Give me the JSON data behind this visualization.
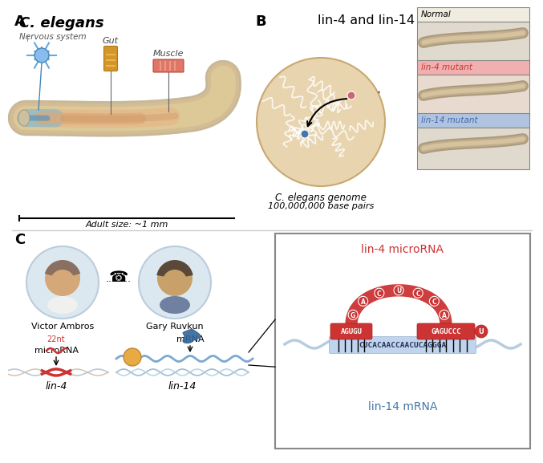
{
  "bg_color": "#ffffff",
  "panel_A_label": "A",
  "panel_B_label": "B",
  "panel_C_label": "C",
  "title_B": "lin-4 and lin-14 mutants",
  "elegans_title": "C. elegans",
  "nervous_system": "Nervous system",
  "gut_label": "Gut",
  "muscle_label": "Muscle",
  "adult_size": "Adult size: ~1 mm",
  "genome_label": "C. elegans genome",
  "base_pairs": "100,000,000 base pairs",
  "lin4_label": "lin-4",
  "lin14_label": "lin-14",
  "normal_label": "Normal",
  "lin4_mutant_label": "lin-4 mutant",
  "lin14_mutant_label": "lin-14 mutant",
  "ambros_name": "Victor Ambros",
  "ruvkun_name": "Gary Ruvkun",
  "nt_label": "22nt",
  "microrna_label": "microRNA",
  "mrna_label": "mRNA",
  "lin4_gene": "lin-4",
  "lin14_gene": "lin-14",
  "microrna_title": "lin-4 microRNA",
  "mrna_title": "lin-14 mRNA",
  "microrna_seq_left": "AGUGU",
  "microrna_seq_loop": "GACUCCA",
  "microrna_seq_right": "GAGUCCC",
  "microrna_seq_tail": "U",
  "mrna_seq": "CUCACAACCAACUCAGGGA",
  "color_red": "#cc3333",
  "color_blue": "#4477aa",
  "color_pink_bg": "#f0b0b0",
  "color_blue_bg": "#b0c4e0",
  "genome_bg": "#e8d5b0",
  "genome_dna_color": "#e0cba8",
  "lin4_dot": "#cc6677",
  "lin14_dot": "#4477aa",
  "worm_outer": "#c8b898",
  "worm_mid": "#d4a868",
  "worm_inner_pink": "#e0a888",
  "worm_inner_blue": "#a8c8d8",
  "sep_line_color": "#cccccc",
  "photo_bg_ambros": "#dce8f0",
  "photo_bg_ruvkun": "#dce8f0"
}
